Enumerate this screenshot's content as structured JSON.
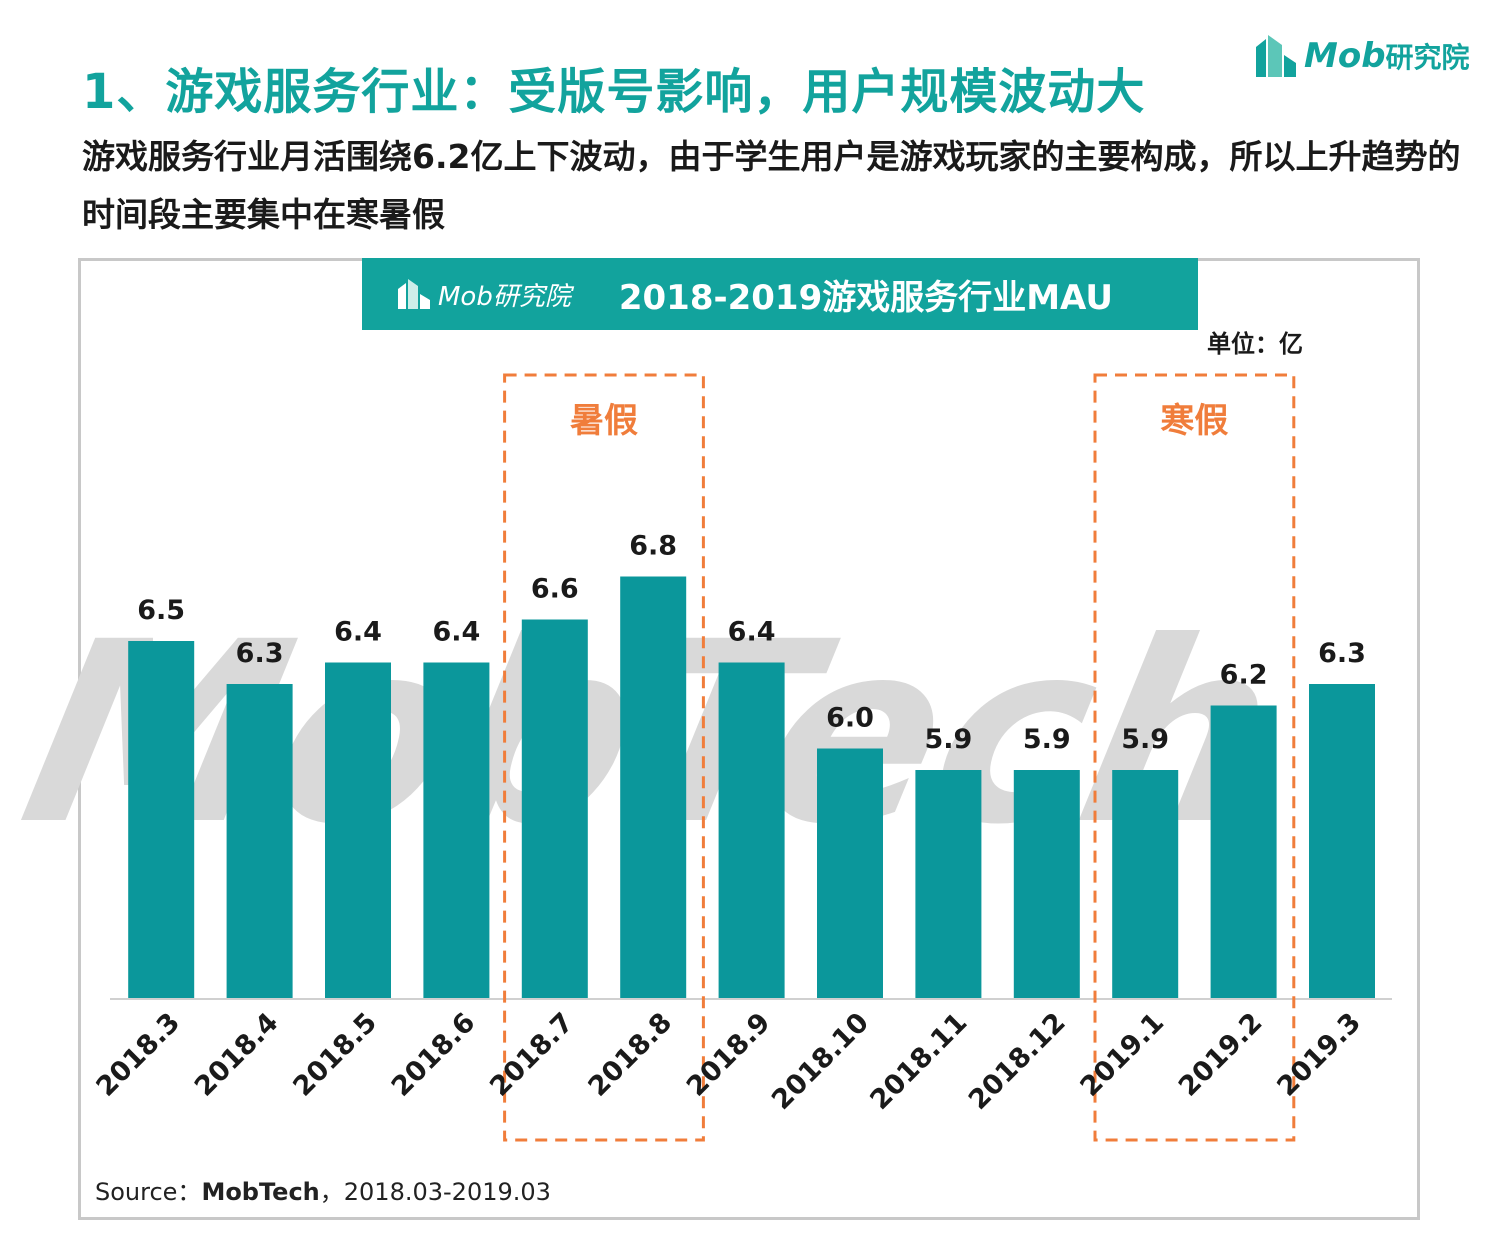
{
  "header": {
    "title": "1、游戏服务行业：受版号影响，用户规模波动大",
    "subtitle": "游戏服务行业月活围绕6.2亿上下波动，由于学生用户是游戏玩家的主要构成，所以上升趋势的时间段主要集中在寒暑假"
  },
  "logo": {
    "brand": "Mob",
    "suffix": "研究院"
  },
  "banner": {
    "title": "2018-2019游戏服务行业MAU"
  },
  "unit_label": "单位：亿",
  "watermark": "MobTech",
  "source": {
    "prefix": "Source：",
    "brand": "MobTech",
    "range": "，2018.03-2019.03"
  },
  "colors": {
    "accent": "#12a39d",
    "bar": "#0b979b",
    "highlight": "#f07d3b"
  },
  "chart_data": {
    "type": "bar",
    "title": "2018-2019游戏服务行业MAU",
    "ylabel": "单位：亿",
    "categories": [
      "2018.3",
      "2018.4",
      "2018.5",
      "2018.6",
      "2018.7",
      "2018.8",
      "2018.9",
      "2018.10",
      "2018.11",
      "2018.12",
      "2019.1",
      "2019.2",
      "2019.3"
    ],
    "values": [
      6.5,
      6.3,
      6.4,
      6.4,
      6.6,
      6.8,
      6.4,
      6.0,
      5.9,
      5.9,
      5.9,
      6.2,
      6.3
    ],
    "highlights": [
      {
        "label": "暑假",
        "categories": [
          "2018.7",
          "2018.8"
        ]
      },
      {
        "label": "寒假",
        "categories": [
          "2019.1",
          "2019.2"
        ]
      }
    ],
    "grid": false,
    "legend": "none"
  }
}
